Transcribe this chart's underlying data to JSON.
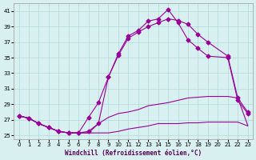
{
  "xlabel": "Windchill (Refroidissement éolien,°C)",
  "bg_color": "#d8f0f0",
  "line_color": "#990099",
  "grid_color": "#b0d8d8",
  "x_ticks": [
    0,
    1,
    2,
    3,
    4,
    5,
    6,
    7,
    8,
    9,
    10,
    11,
    12,
    13,
    14,
    15,
    16,
    17,
    18,
    19,
    20,
    21,
    22,
    23
  ],
  "y_ticks": [
    25,
    27,
    29,
    31,
    33,
    35,
    37,
    39,
    41
  ],
  "xlim": [
    -0.5,
    23.5
  ],
  "ylim": [
    24.5,
    42
  ],
  "series1_x": [
    0,
    1,
    2,
    3,
    4,
    5,
    6,
    7,
    8,
    9,
    10,
    11,
    12,
    13,
    14,
    15,
    16,
    17,
    18,
    19,
    21,
    22,
    23
  ],
  "series1_y": [
    27.5,
    27.2,
    26.5,
    26.0,
    25.5,
    25.3,
    25.3,
    25.3,
    25.3,
    25.3,
    25.5,
    25.8,
    26.0,
    26.2,
    26.5,
    26.5,
    26.5,
    26.6,
    26.6,
    26.7,
    26.7,
    26.7,
    26.2
  ],
  "series2_x": [
    0,
    1,
    2,
    3,
    4,
    5,
    6,
    7,
    8,
    9,
    10,
    11,
    12,
    13,
    14,
    15,
    16,
    17,
    18,
    19,
    21,
    22,
    23
  ],
  "series2_y": [
    27.5,
    27.2,
    26.5,
    26.0,
    25.5,
    25.3,
    25.3,
    25.3,
    26.5,
    27.3,
    27.8,
    28.0,
    28.3,
    28.8,
    29.0,
    29.2,
    29.5,
    29.8,
    29.9,
    30.0,
    30.0,
    29.8,
    26.3
  ],
  "series3_x": [
    0,
    1,
    2,
    3,
    4,
    5,
    6,
    7,
    8,
    9,
    10,
    11,
    12,
    13,
    14,
    15,
    16,
    17,
    18,
    19,
    21,
    22,
    23
  ],
  "series3_y": [
    27.5,
    27.2,
    26.5,
    26.0,
    25.5,
    25.3,
    25.3,
    27.3,
    29.2,
    32.5,
    35.3,
    37.5,
    38.3,
    39.0,
    39.5,
    40.0,
    39.8,
    39.3,
    38.0,
    37.0,
    35.2,
    29.8,
    28.0
  ],
  "series4_x": [
    0,
    1,
    2,
    3,
    4,
    5,
    6,
    7,
    8,
    9,
    10,
    11,
    12,
    13,
    14,
    15,
    16,
    17,
    18,
    19,
    21,
    22,
    23
  ],
  "series4_y": [
    27.5,
    27.2,
    26.5,
    26.0,
    25.5,
    25.3,
    25.3,
    25.5,
    26.5,
    32.5,
    35.5,
    37.8,
    38.5,
    39.7,
    40.0,
    41.2,
    39.5,
    37.3,
    36.2,
    35.2,
    35.0,
    29.5,
    27.8
  ]
}
